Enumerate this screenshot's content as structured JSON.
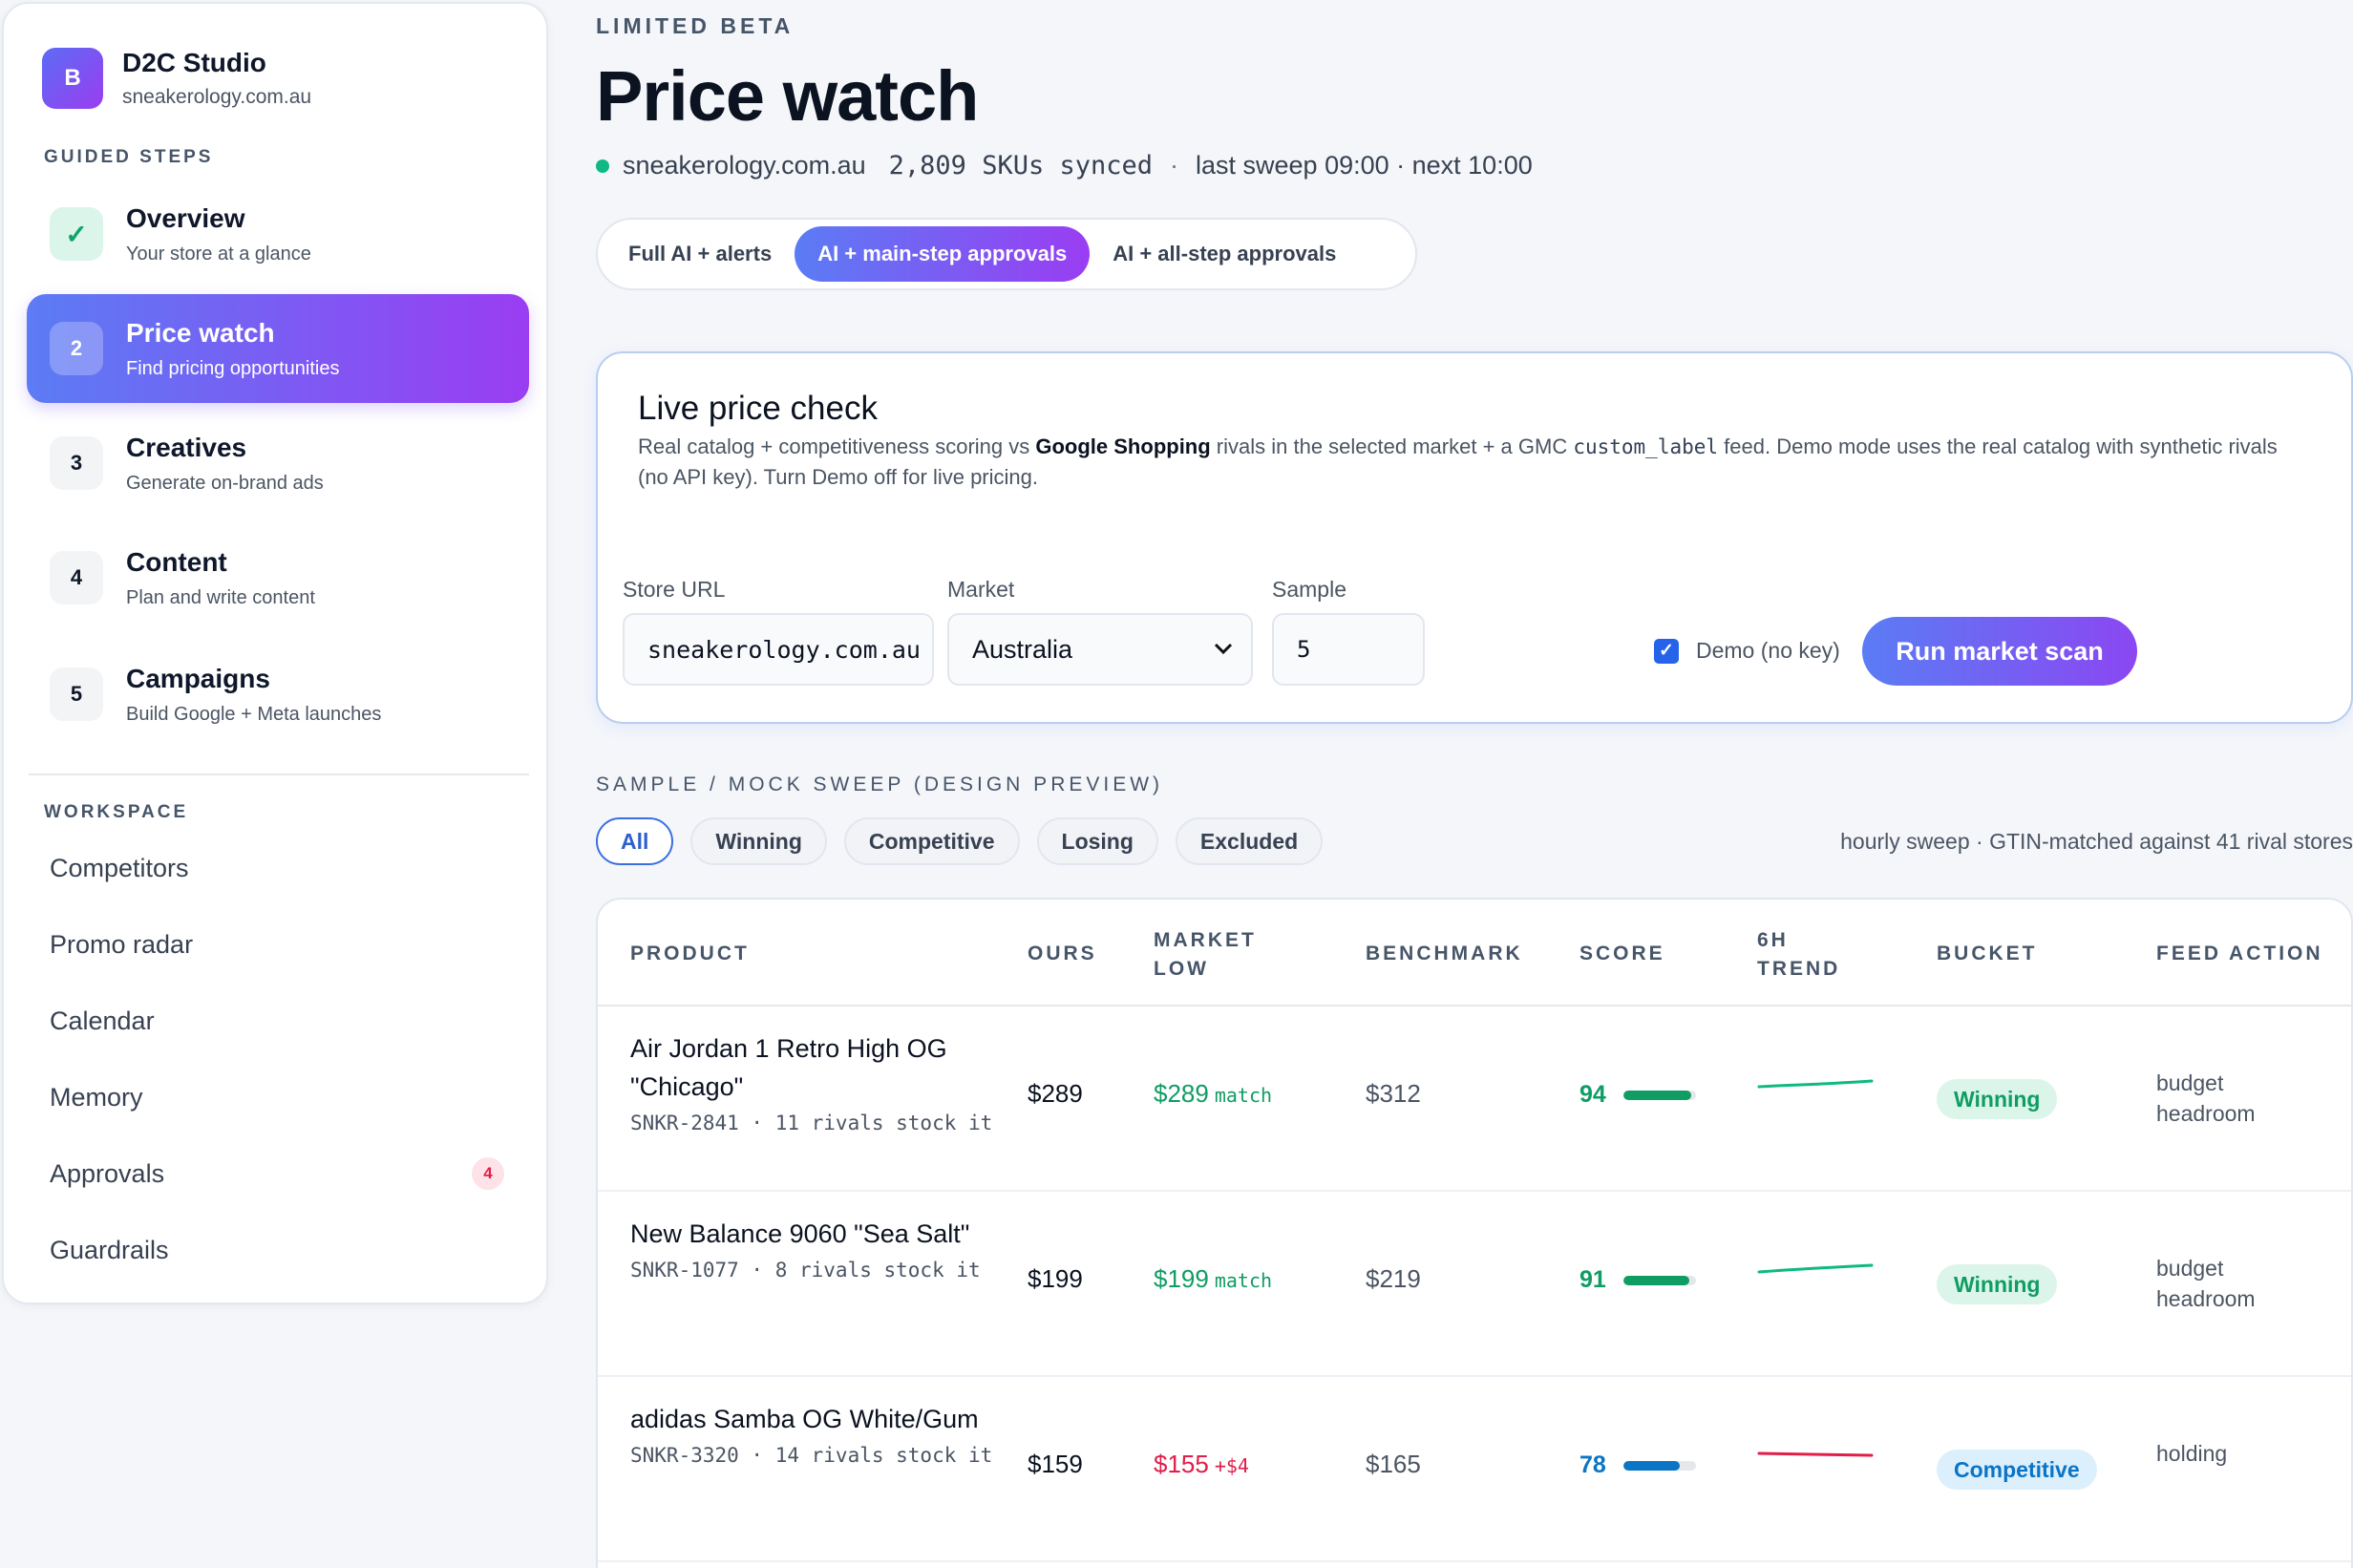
{
  "brand": {
    "logo_letter": "B",
    "name": "D2C Studio",
    "domain": "sneakerology.com.au"
  },
  "sidebar": {
    "guided_label": "GUIDED STEPS",
    "steps": [
      {
        "badge": "✓",
        "title": "Overview",
        "sub": "Your store at a glance",
        "state": "done"
      },
      {
        "badge": "2",
        "title": "Price watch",
        "sub": "Find pricing opportunities",
        "state": "active"
      },
      {
        "badge": "3",
        "title": "Creatives",
        "sub": "Generate on-brand ads",
        "state": "todo"
      },
      {
        "badge": "4",
        "title": "Content",
        "sub": "Plan and write content",
        "state": "todo"
      },
      {
        "badge": "5",
        "title": "Campaigns",
        "sub": "Build Google + Meta launches",
        "state": "todo"
      }
    ],
    "workspace_label": "WORKSPACE",
    "workspace": [
      {
        "label": "Competitors"
      },
      {
        "label": "Promo radar"
      },
      {
        "label": "Calendar"
      },
      {
        "label": "Memory"
      },
      {
        "label": "Approvals",
        "badge": "4"
      },
      {
        "label": "Guardrails"
      }
    ]
  },
  "header": {
    "eyebrow": "LIMITED BETA",
    "title": "Price watch",
    "store": "sneakerology.com.au",
    "skus": "2,809 SKUs synced",
    "sep": "·",
    "sweep": "last sweep 09:00 · next 10:00"
  },
  "modes": [
    "Full AI + alerts",
    "AI + main-step approvals",
    "AI + all-step approvals"
  ],
  "live_check": {
    "title": "Live price check",
    "desc_1": "Real catalog + competitiveness scoring vs ",
    "desc_bold": "Google Shopping",
    "desc_2": " rivals in the selected market + a GMC ",
    "desc_code": "custom_label",
    "desc_3": " feed. Demo mode uses the real catalog with synthetic rivals (no API key). Turn Demo off for live pricing.",
    "store_url_label": "Store URL",
    "store_url_value": "sneakerology.com.au",
    "market_label": "Market",
    "market_value": "Australia",
    "sample_label": "Sample",
    "sample_value": "5",
    "demo_label": "Demo (no key)",
    "run_label": "Run market scan"
  },
  "sweep": {
    "label": "SAMPLE / MOCK SWEEP (DESIGN PREVIEW)",
    "filters": [
      "All",
      "Winning",
      "Competitive",
      "Losing",
      "Excluded"
    ],
    "meta": "hourly sweep · GTIN-matched against 41 rival stores"
  },
  "table": {
    "headers": {
      "product": "PRODUCT",
      "ours": "OURS",
      "market_low_1": "MARKET",
      "market_low_2": "LOW",
      "benchmark": "BENCHMARK",
      "score": "SCORE",
      "trend_1": "6H",
      "trend_2": "TREND",
      "bucket": "BUCKET",
      "feed_action": "FEED ACTION"
    },
    "rows": [
      {
        "name": "Air Jordan 1 Retro High OG \"Chicago\"",
        "sub": "SNKR-2841 · 11 rivals stock it",
        "ours": "$289",
        "market_low": "$289",
        "market_tag": "match",
        "market_tone": "green",
        "benchmark": "$312",
        "score": 94,
        "score_color": "#0f9d63",
        "bucket": "Winning",
        "bucket_tone": "win",
        "feed_action": "budget headroom",
        "trend_color": "#10b981"
      },
      {
        "name": "New Balance 9060 \"Sea Salt\"",
        "sub": "SNKR-1077 · 8 rivals stock it",
        "ours": "$199",
        "market_low": "$199",
        "market_tag": "match",
        "market_tone": "green",
        "benchmark": "$219",
        "score": 91,
        "score_color": "#0f9d63",
        "bucket": "Winning",
        "bucket_tone": "win",
        "feed_action": "budget headroom",
        "trend_color": "#10b981"
      },
      {
        "name": "adidas Samba OG White/Gum",
        "sub": "SNKR-3320 · 14 rivals stock it",
        "ours": "$159",
        "market_low": "$155",
        "market_tag": "+$4",
        "market_tone": "red",
        "benchmark": "$165",
        "score": 78,
        "score_color": "#0b74c4",
        "bucket": "Competitive",
        "bucket_tone": "comp",
        "feed_action": "holding",
        "trend_color": "#e11d48"
      }
    ]
  }
}
